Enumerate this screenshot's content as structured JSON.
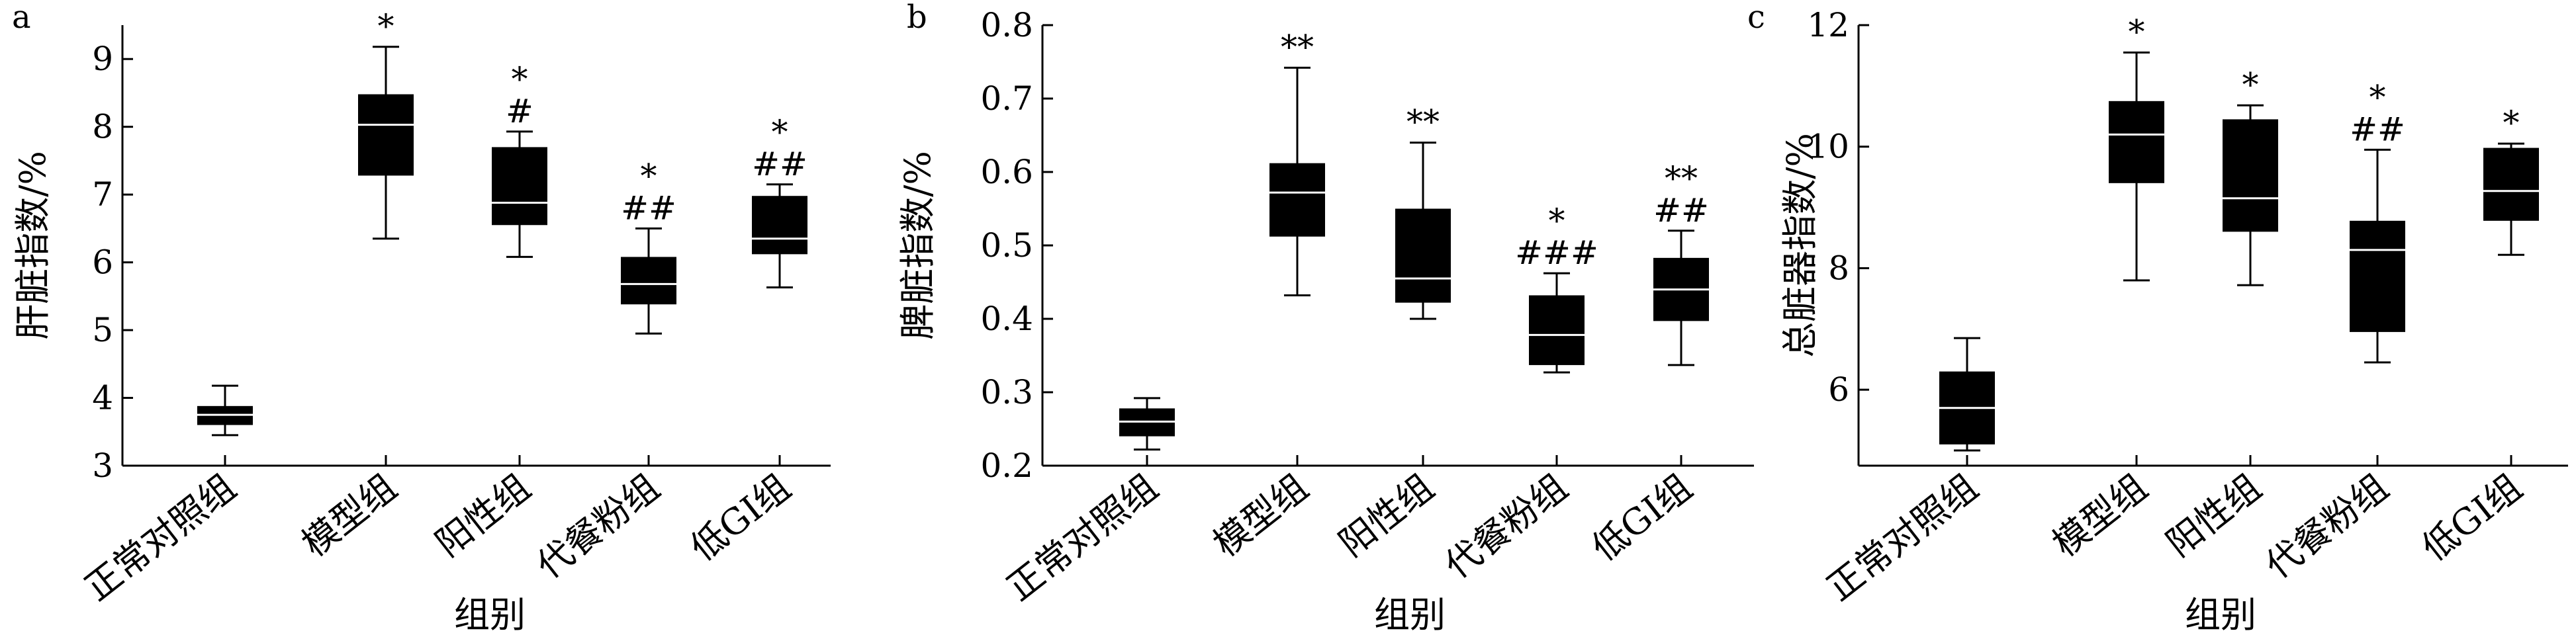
{
  "chart_data": [
    {
      "type": "box",
      "panel_label": "a",
      "ylabel": "肝脏指数/%",
      "xlabel": "组别",
      "ylim": [
        3,
        9.5
      ],
      "yticks": [
        3,
        4,
        5,
        6,
        7,
        8,
        9
      ],
      "categories": [
        "正常对照组",
        "模型组",
        "阳性组",
        "代餐粉组",
        "低GI组"
      ],
      "boxes": [
        {
          "min": 3.45,
          "q1": 3.6,
          "median": 3.75,
          "q3": 3.88,
          "max": 4.18,
          "annotation": []
        },
        {
          "min": 6.35,
          "q1": 7.28,
          "median": 8.03,
          "q3": 8.48,
          "max": 9.18,
          "annotation": [
            "*"
          ]
        },
        {
          "min": 6.08,
          "q1": 6.55,
          "median": 6.88,
          "q3": 7.7,
          "max": 7.93,
          "annotation": [
            "*",
            "#"
          ]
        },
        {
          "min": 4.95,
          "q1": 5.38,
          "median": 5.68,
          "q3": 6.08,
          "max": 6.5,
          "annotation": [
            "*",
            "##"
          ]
        },
        {
          "min": 5.63,
          "q1": 6.12,
          "median": 6.35,
          "q3": 6.98,
          "max": 7.15,
          "annotation": [
            "*",
            "##"
          ]
        }
      ]
    },
    {
      "type": "box",
      "panel_label": "b",
      "ylabel": "脾脏指数/%",
      "xlabel": "组别",
      "ylim": [
        0.2,
        0.8
      ],
      "yticks": [
        "0.2",
        "0.3",
        "0.4",
        "0.5",
        "0.6",
        "0.7",
        "0.8"
      ],
      "categories": [
        "正常对照组",
        "模型组",
        "阳性组",
        "代餐粉组",
        "低GI组"
      ],
      "boxes": [
        {
          "min": 0.222,
          "q1": 0.24,
          "median": 0.26,
          "q3": 0.278,
          "max": 0.292,
          "annotation": []
        },
        {
          "min": 0.432,
          "q1": 0.512,
          "median": 0.572,
          "q3": 0.612,
          "max": 0.742,
          "annotation": [
            "**"
          ]
        },
        {
          "min": 0.4,
          "q1": 0.422,
          "median": 0.455,
          "q3": 0.55,
          "max": 0.64,
          "annotation": [
            "**"
          ]
        },
        {
          "min": 0.327,
          "q1": 0.337,
          "median": 0.378,
          "q3": 0.432,
          "max": 0.462,
          "annotation": [
            "*",
            "###"
          ]
        },
        {
          "min": 0.337,
          "q1": 0.397,
          "median": 0.44,
          "q3": 0.483,
          "max": 0.52,
          "annotation": [
            "**",
            "##"
          ]
        }
      ]
    },
    {
      "type": "box",
      "panel_label": "c",
      "ylabel": "总脏器指数/%",
      "xlabel": "组别",
      "ylim": [
        4.75,
        12
      ],
      "yticks": [
        6,
        8,
        10,
        12
      ],
      "categories": [
        "正常对照组",
        "模型组",
        "阳性组",
        "代餐粉组",
        "低GI组"
      ],
      "boxes": [
        {
          "min": 5.0,
          "q1": 5.1,
          "median": 5.7,
          "q3": 6.3,
          "max": 6.85,
          "annotation": []
        },
        {
          "min": 7.8,
          "q1": 9.4,
          "median": 10.2,
          "q3": 10.75,
          "max": 11.55,
          "annotation": [
            "*"
          ]
        },
        {
          "min": 7.72,
          "q1": 8.6,
          "median": 9.15,
          "q3": 10.45,
          "max": 10.68,
          "annotation": [
            "*"
          ]
        },
        {
          "min": 6.45,
          "q1": 6.95,
          "median": 8.3,
          "q3": 8.78,
          "max": 9.95,
          "annotation": [
            "*",
            "##"
          ]
        },
        {
          "min": 8.22,
          "q1": 8.78,
          "median": 9.27,
          "q3": 9.98,
          "max": 10.05,
          "annotation": [
            "*"
          ]
        }
      ]
    }
  ]
}
